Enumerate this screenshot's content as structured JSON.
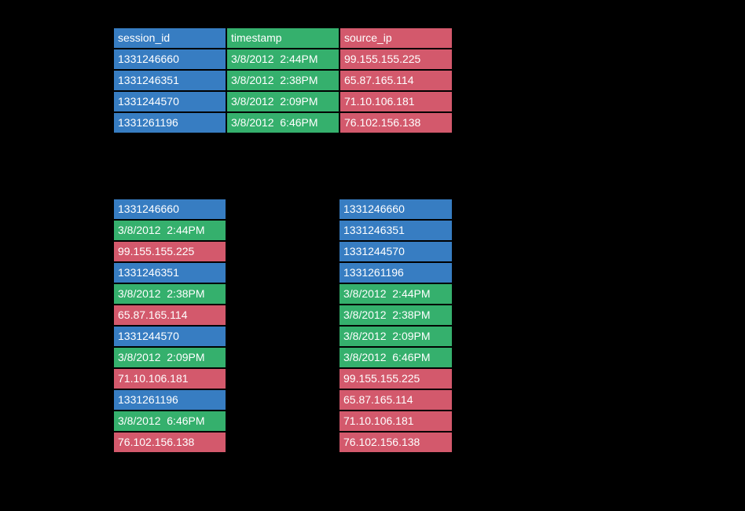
{
  "palette": {
    "background": "#000000",
    "text": "#ffffff",
    "session_id_color": "#377dc2",
    "timestamp_color": "#35b06d",
    "source_ip_color": "#d3596c"
  },
  "events_table": {
    "columns": [
      {
        "key": "session_id",
        "label": "session_id"
      },
      {
        "key": "timestamp",
        "label": "timestamp"
      },
      {
        "key": "source_ip",
        "label": "source_ip"
      }
    ],
    "rows": [
      {
        "session_id": "1331246660",
        "timestamp": "3/8/2012  2:44PM",
        "source_ip": "99.155.155.225"
      },
      {
        "session_id": "1331246351",
        "timestamp": "3/8/2012  2:38PM",
        "source_ip": "65.87.165.114"
      },
      {
        "session_id": "1331244570",
        "timestamp": "3/8/2012  2:09PM",
        "source_ip": "71.10.106.181"
      },
      {
        "session_id": "1331261196",
        "timestamp": "3/8/2012  6:46PM",
        "source_ip": "76.102.156.138"
      }
    ]
  },
  "row_major_list": {
    "cells": [
      {
        "field": "session_id",
        "value": "1331246660"
      },
      {
        "field": "timestamp",
        "value": "3/8/2012  2:44PM"
      },
      {
        "field": "source_ip",
        "value": "99.155.155.225"
      },
      {
        "field": "session_id",
        "value": "1331246351"
      },
      {
        "field": "timestamp",
        "value": "3/8/2012  2:38PM"
      },
      {
        "field": "source_ip",
        "value": "65.87.165.114"
      },
      {
        "field": "session_id",
        "value": "1331244570"
      },
      {
        "field": "timestamp",
        "value": "3/8/2012  2:09PM"
      },
      {
        "field": "source_ip",
        "value": "71.10.106.181"
      },
      {
        "field": "session_id",
        "value": "1331261196"
      },
      {
        "field": "timestamp",
        "value": "3/8/2012  6:46PM"
      },
      {
        "field": "source_ip",
        "value": "76.102.156.138"
      }
    ]
  },
  "column_major_list": {
    "cells": [
      {
        "field": "session_id",
        "value": "1331246660"
      },
      {
        "field": "session_id",
        "value": "1331246351"
      },
      {
        "field": "session_id",
        "value": "1331244570"
      },
      {
        "field": "session_id",
        "value": "1331261196"
      },
      {
        "field": "timestamp",
        "value": "3/8/2012  2:44PM"
      },
      {
        "field": "timestamp",
        "value": "3/8/2012  2:38PM"
      },
      {
        "field": "timestamp",
        "value": "3/8/2012  2:09PM"
      },
      {
        "field": "timestamp",
        "value": "3/8/2012  6:46PM"
      },
      {
        "field": "source_ip",
        "value": "99.155.155.225"
      },
      {
        "field": "source_ip",
        "value": "65.87.165.114"
      },
      {
        "field": "source_ip",
        "value": "71.10.106.181"
      },
      {
        "field": "source_ip",
        "value": "76.102.156.138"
      }
    ]
  }
}
